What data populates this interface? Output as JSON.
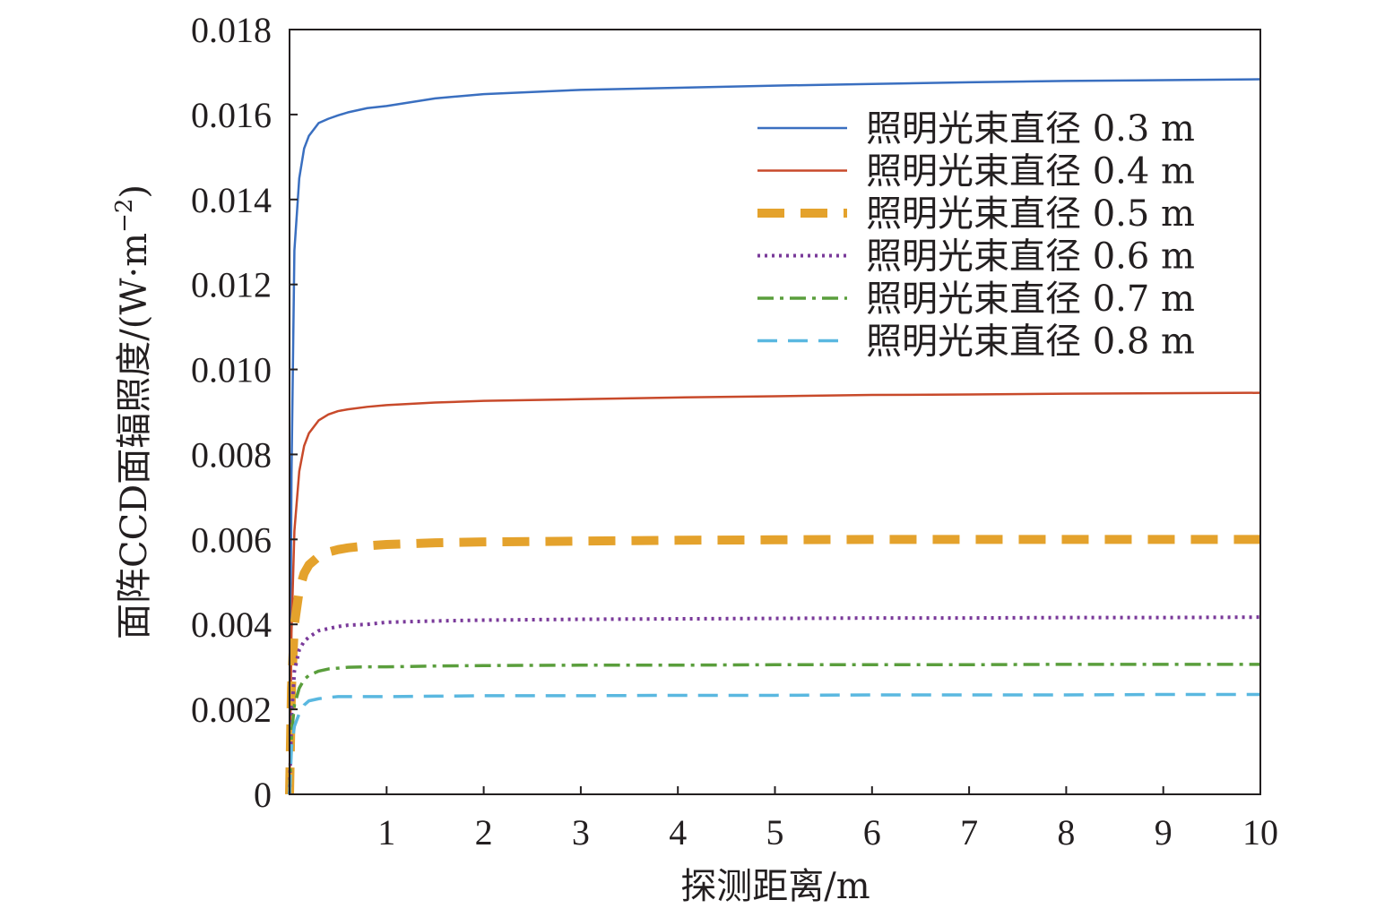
{
  "chart_data": {
    "type": "line",
    "title": "",
    "xlabel": "探测距离/m",
    "ylabel": "面阵CCD面辐照度/(W·m",
    "ylabel_sup": "−2",
    "ylabel_close": ")",
    "xlim": [
      0,
      10
    ],
    "ylim": [
      0,
      0.018
    ],
    "xticks": [
      1,
      2,
      3,
      4,
      5,
      6,
      7,
      8,
      9,
      10
    ],
    "yticks": [
      0,
      0.002,
      0.004,
      0.006,
      0.008,
      0.01,
      0.012,
      0.014,
      0.016,
      0.018
    ],
    "xtick_labels": [
      "1",
      "2",
      "3",
      "4",
      "5",
      "6",
      "7",
      "8",
      "9",
      "10"
    ],
    "ytick_labels": [
      "0",
      "0.002",
      "0.004",
      "0.006",
      "0.008",
      "0.010",
      "0.012",
      "0.014",
      "0.016",
      "0.018"
    ],
    "grid": false,
    "legend_position": "top-right",
    "x": [
      0,
      0.02,
      0.05,
      0.1,
      0.15,
      0.2,
      0.3,
      0.4,
      0.5,
      0.6,
      0.8,
      1,
      1.5,
      2,
      3,
      4,
      5,
      6,
      7,
      8,
      9,
      10
    ],
    "series": [
      {
        "name": "照明光束直径 0.3 m",
        "color": "#3a6fc0",
        "style": "solid",
        "values": [
          0,
          0.0075,
          0.0128,
          0.0145,
          0.0152,
          0.0155,
          0.0158,
          0.0159,
          0.01598,
          0.01605,
          0.01615,
          0.0162,
          0.01638,
          0.01648,
          0.01658,
          0.01663,
          0.01668,
          0.01672,
          0.01676,
          0.01679,
          0.01681,
          0.01683
        ]
      },
      {
        "name": "照明光束直径 0.4 m",
        "color": "#c84a2b",
        "style": "solid",
        "values": [
          0,
          0.0038,
          0.0062,
          0.0076,
          0.0082,
          0.0085,
          0.0088,
          0.00894,
          0.00902,
          0.00906,
          0.00912,
          0.00916,
          0.00922,
          0.00926,
          0.0093,
          0.00934,
          0.00937,
          0.0094,
          0.00941,
          0.00943,
          0.00944,
          0.00945
        ]
      },
      {
        "name": "照明光束直径 0.5 m",
        "color": "#e4a22c",
        "style": "dashed-thick",
        "values": [
          0,
          0.0025,
          0.004,
          0.0048,
          0.0052,
          0.0054,
          0.0056,
          0.0057,
          0.00576,
          0.0058,
          0.00585,
          0.00588,
          0.00592,
          0.00594,
          0.00596,
          0.00598,
          0.00599,
          0.006,
          0.006,
          0.006,
          0.006,
          0.006
        ]
      },
      {
        "name": "照明光束直径 0.6 m",
        "color": "#7a3a9a",
        "style": "dotted",
        "values": [
          0,
          0.0018,
          0.0029,
          0.0034,
          0.0036,
          0.0037,
          0.00385,
          0.0039,
          0.00395,
          0.00398,
          0.004,
          0.00405,
          0.00408,
          0.0041,
          0.00412,
          0.00413,
          0.00414,
          0.00415,
          0.00415,
          0.00416,
          0.00416,
          0.00417
        ]
      },
      {
        "name": "照明光束直径 0.7 m",
        "color": "#5a9e3c",
        "style": "dash-dot",
        "values": [
          0,
          0.0014,
          0.0021,
          0.0025,
          0.0027,
          0.0028,
          0.0029,
          0.00295,
          0.00297,
          0.00299,
          0.003,
          0.003,
          0.00302,
          0.00303,
          0.00304,
          0.00304,
          0.00305,
          0.00305,
          0.00305,
          0.00306,
          0.00306,
          0.00306
        ]
      },
      {
        "name": "照明光束直径 0.8 m",
        "color": "#5ab8e0",
        "style": "dashed",
        "values": [
          0,
          0.0011,
          0.0016,
          0.0019,
          0.0021,
          0.0022,
          0.00225,
          0.00228,
          0.0023,
          0.0023,
          0.0023,
          0.0023,
          0.00231,
          0.00232,
          0.00232,
          0.00233,
          0.00233,
          0.00234,
          0.00234,
          0.00234,
          0.00235,
          0.00235
        ]
      }
    ]
  }
}
